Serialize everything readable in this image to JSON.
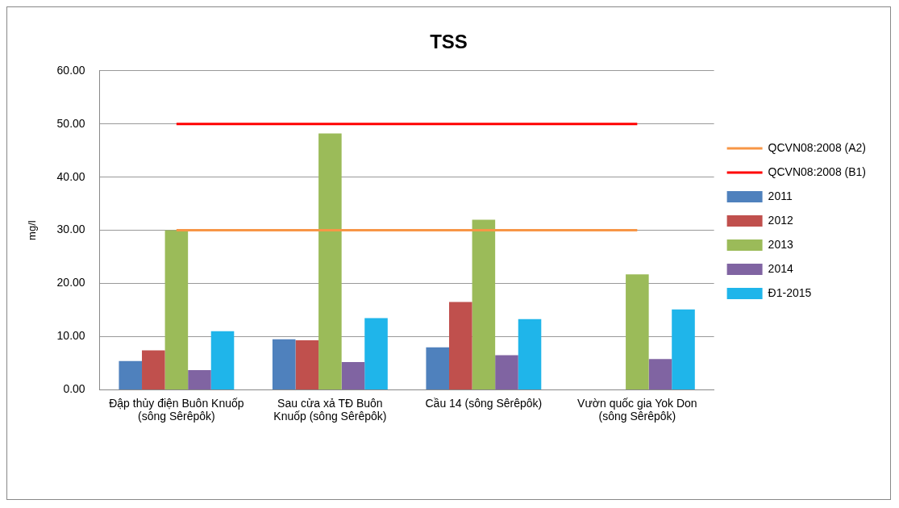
{
  "chart_data": {
    "type": "bar",
    "title": "TSS",
    "ylabel": "mg/l",
    "categories": [
      "Đập thủy điện Buôn Knuốp (sông Sêrêpôk)",
      "Sau cửa xả TĐ Buôn Knuốp (sông Sêrêpôk)",
      "Cầu 14 (sông Sêrêpôk)",
      "Vườn quốc gia Yok Don (sông Sêrêpôk)"
    ],
    "series": [
      {
        "name": "2011",
        "color": "#4f81bd",
        "values": [
          5.4,
          9.5,
          8.0,
          null
        ]
      },
      {
        "name": "2012",
        "color": "#c0504d",
        "values": [
          7.4,
          9.3,
          16.5,
          null
        ]
      },
      {
        "name": "2013",
        "color": "#9bbb59",
        "values": [
          30.0,
          48.2,
          32.0,
          21.7
        ]
      },
      {
        "name": "2014",
        "color": "#8064a2",
        "values": [
          3.7,
          5.2,
          6.5,
          5.8
        ]
      },
      {
        "name": "Đ1-2015",
        "color": "#1fb5ea",
        "values": [
          11.0,
          13.5,
          13.3,
          15.1
        ]
      },
      {
        "name": "QCVN08:2008 (A2)",
        "type": "line",
        "color": "#f79646",
        "values": [
          30,
          30,
          30,
          30
        ]
      },
      {
        "name": "QCVN08:2008 (B1)",
        "type": "line",
        "color": "#ff0000",
        "values": [
          50,
          50,
          50,
          50
        ]
      }
    ],
    "ylim": [
      0,
      60
    ],
    "yticks": [
      {
        "value": 0,
        "label": "0.00"
      },
      {
        "value": 10,
        "label": "10.00"
      },
      {
        "value": 20,
        "label": "20.00"
      },
      {
        "value": 30,
        "label": "30.00"
      },
      {
        "value": 40,
        "label": "40.00"
      },
      {
        "value": 50,
        "label": "50.00"
      },
      {
        "value": 60,
        "label": "60.00"
      }
    ],
    "grid": "y",
    "legend": "right"
  }
}
